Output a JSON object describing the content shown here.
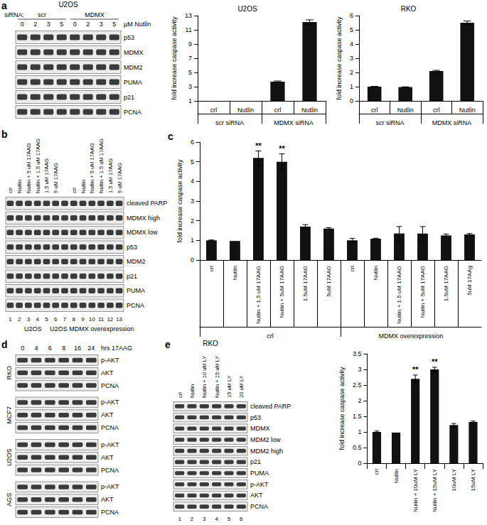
{
  "panel_labels": [
    "a",
    "b",
    "c",
    "d",
    "e"
  ],
  "blots": [
    {
      "title": "U2OS",
      "group_header": "siRNA:",
      "lane_header": "µM Nutlin",
      "groups": [
        {
          "label": "scr",
          "lanes": [
            0,
            2,
            3,
            5
          ]
        },
        {
          "label": "MDMX",
          "lanes": [
            0,
            2,
            3,
            5
          ]
        }
      ],
      "rows": [
        "p53",
        "MDMX",
        "MDM2",
        "PUMA",
        "p21",
        "PCNA"
      ]
    },
    {
      "groups": [
        {
          "label": "U2OS",
          "lanes": [
            {
              "label": "crl",
              "number": 1
            },
            {
              "label": "Nutlin",
              "number": 2
            },
            {
              "label": "Nutlin + 5 uM 17AAG",
              "number": 3
            },
            {
              "label": "Nutlin + 1.5 uM 17AAG",
              "number": 4
            },
            {
              "label": "1.5 uM 17AAG",
              "number": 5
            },
            {
              "label": "5 uM 17AAG",
              "number": 6
            }
          ]
        },
        {
          "label": "U2OS MDMX overexpression",
          "lanes": [
            {
              "label": null,
              "number": 7
            },
            {
              "label": "crl",
              "number": 8
            },
            {
              "label": "Nutlin",
              "number": 9
            },
            {
              "label": "Nutlin + 5 uM 17AAG",
              "number": 10
            },
            {
              "label": "Nutlin + 1.5 uM 17AAG",
              "number": 11
            },
            {
              "label": "1.5 uM 17AAG",
              "number": 12
            },
            {
              "label": "5 uM 17AAG",
              "number": 13
            }
          ]
        }
      ],
      "rows": [
        "cleaved PARP",
        "MDMX high",
        "MDMX low",
        "p53",
        "MDM2",
        "p21",
        "PUMA",
        "PCNA"
      ]
    },
    {
      "lane_header": "hrs 17AAG",
      "groups": [
        {
          "lanes": [
            0,
            4,
            6,
            8,
            16,
            24
          ]
        }
      ],
      "sections": [
        {
          "label": "RKO",
          "rows": [
            "p-AKT",
            "AKT",
            "PCNA"
          ]
        },
        {
          "label": "MCF7",
          "rows": [
            "p-AKT",
            "AKT",
            "PCNA"
          ]
        },
        {
          "label": "U2OS",
          "rows": [
            "p-AKT",
            "AKT",
            "PCNA"
          ]
        },
        {
          "label": "AGS",
          "rows": [
            "p-AKT",
            "AKT",
            "PCNA"
          ]
        }
      ]
    },
    {
      "title": "RKO",
      "groups": [
        {
          "lanes": [
            {
              "label": "crl",
              "number": 1
            },
            {
              "label": "Nutlin",
              "number": 2
            },
            {
              "label": "Nutlin + 10 uM LY",
              "number": 3
            },
            {
              "label": "Nutlin + 15 uM LY",
              "number": 4
            },
            {
              "label": "15 uM LY",
              "number": 5
            },
            {
              "label": "20 uM LY",
              "number": 6
            }
          ]
        }
      ],
      "rows": [
        "cleaved PARP",
        "p53",
        "MDMX",
        "MDM2 low",
        "MDM2 high",
        "p21",
        "PUMA",
        "p-AKT",
        "AKT",
        "PCNA"
      ]
    }
  ],
  "chart_data": [
    {
      "type": "bar",
      "title": "U2OS",
      "y_label": "fold increase caspase activity",
      "categories": [
        "crl",
        "Nutlin",
        "crl",
        "Nutlin"
      ],
      "groups": [
        "scr siRNA",
        "MDMX siRNA"
      ],
      "values": [
        1,
        1,
        3.7,
        12.1
      ],
      "errors": [
        0,
        0,
        0.1,
        0.3
      ],
      "color": "#111111",
      "ylim": [
        1,
        13
      ],
      "yticks": [
        1,
        3,
        5,
        7,
        9,
        11,
        13
      ],
      "grid": false
    },
    {
      "type": "bar",
      "title": "RKO",
      "y_label": "fold increase caspase activity",
      "categories": [
        "crl",
        "Nutlin",
        "crl",
        "Nutlin"
      ],
      "groups": [
        "scr siRNA",
        "MDMX siRNA"
      ],
      "values": [
        1,
        0.97,
        2.1,
        5.5
      ],
      "errors": [
        0.02,
        0.02,
        0.05,
        0.12
      ],
      "color": "#111111",
      "ylim": [
        0,
        6
      ],
      "yticks": [
        0,
        1,
        2,
        3,
        4,
        5,
        6
      ],
      "grid": false
    },
    {
      "type": "bar",
      "y_label": "fold increase caspase activity",
      "categories": [
        "crl",
        "Nutlin",
        "Nutlin + 1.5 uM 17AAG",
        "Nutlin + 5uM 17AAG",
        "1.5uM 17AAG",
        "5uM 17AAG",
        "crl",
        "Nutlin",
        "Nutlin + 1.5 uM 17AAG",
        "Nutlin + 5uM 17AAG",
        "1.5uM 17AAG",
        "5uM 17AAg"
      ],
      "groups": [
        "crl",
        "MDMX overexpression"
      ],
      "values": [
        1,
        0.97,
        5.2,
        5.0,
        1.7,
        1.6,
        1.0,
        1.08,
        1.35,
        1.35,
        1.25,
        1.3
      ],
      "errors": [
        0.02,
        0,
        0.35,
        0.4,
        0.1,
        0.05,
        0.1,
        0.03,
        0.35,
        0.35,
        0.07,
        0.05
      ],
      "annotations": [
        null,
        null,
        "**",
        "**",
        null,
        null,
        null,
        null,
        null,
        null,
        null,
        null
      ],
      "color": "#111111",
      "ylim": [
        0,
        6
      ],
      "yticks": [
        0,
        1,
        2,
        3,
        4,
        5,
        6
      ],
      "grid": false
    },
    {
      "type": "bar",
      "y_label": "fold increase caspase activity",
      "categories": [
        "crl",
        "Nutlin",
        "Nutlin + 10uM LY",
        "Nutlin + 15uM LY",
        "10uM LY",
        "15uM LY"
      ],
      "values": [
        1,
        0.98,
        2.7,
        3.0,
        1.22,
        1.32
      ],
      "errors": [
        0.03,
        0,
        0.12,
        0.07,
        0.05,
        0.03
      ],
      "annotations": [
        null,
        null,
        "**",
        "**",
        null,
        null
      ],
      "color": "#111111",
      "ylim": [
        0,
        3.5
      ],
      "yticks": [
        0,
        0.5,
        1,
        1.5,
        2,
        2.5,
        3,
        3.5
      ],
      "grid": false
    }
  ]
}
